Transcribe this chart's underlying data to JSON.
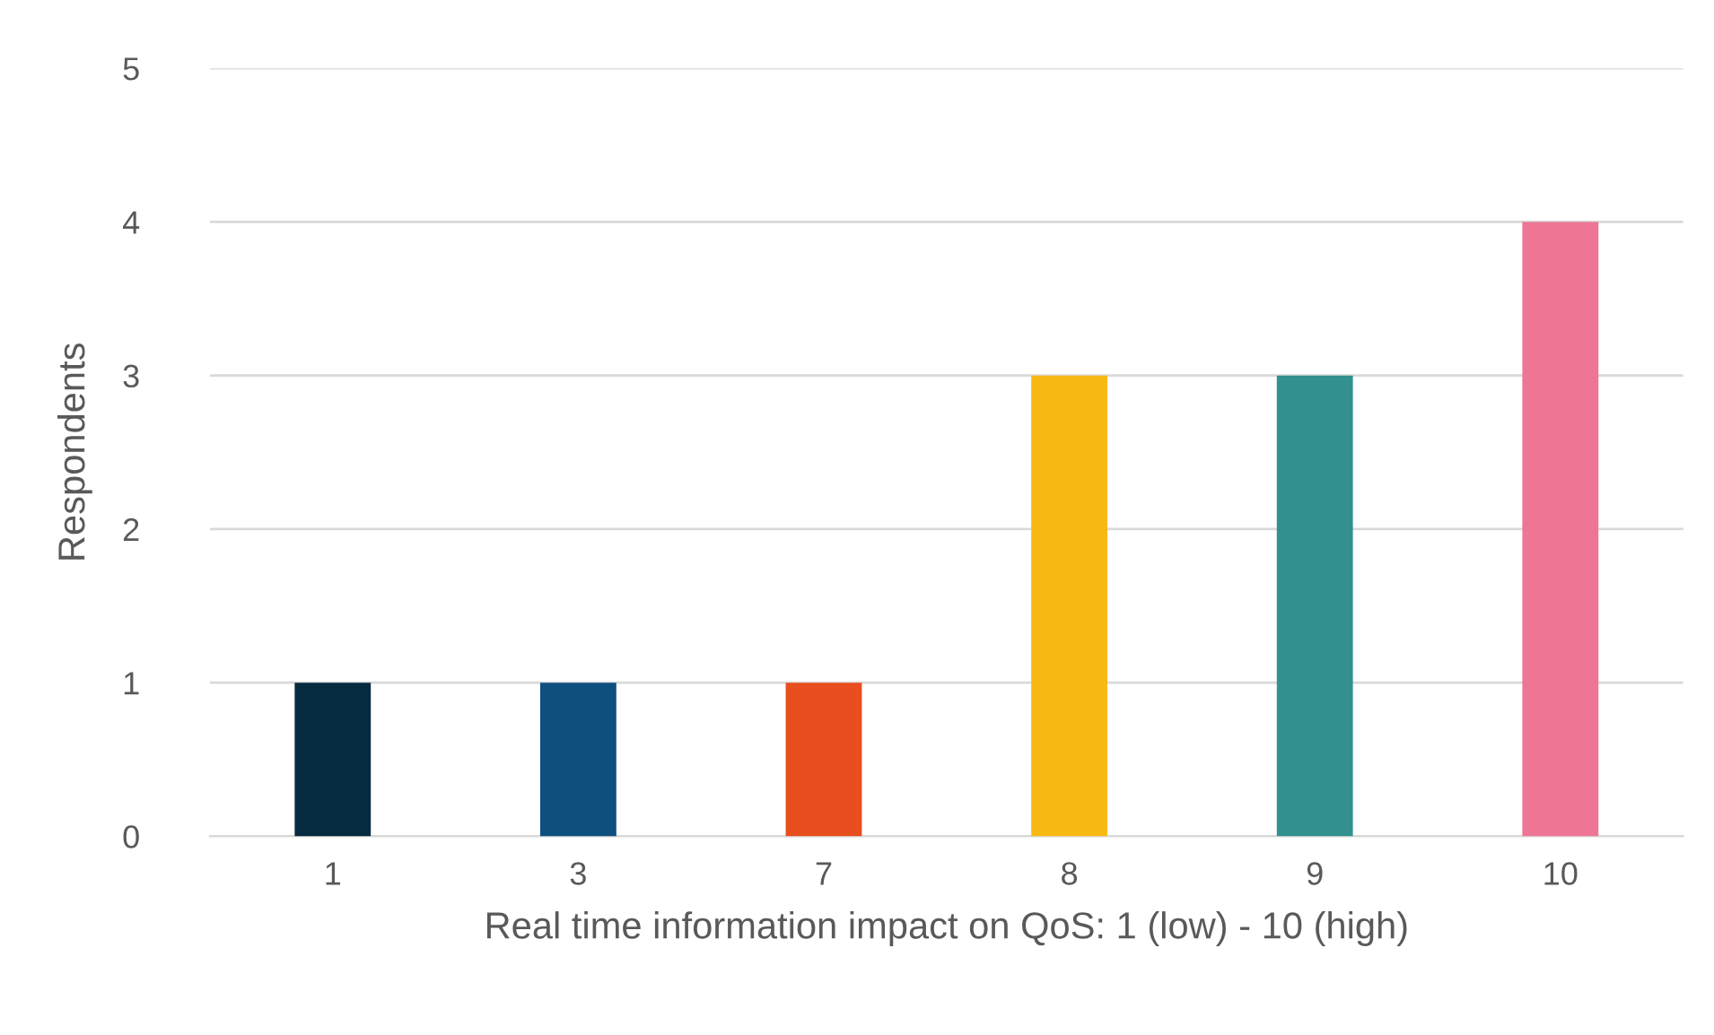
{
  "chart_data": {
    "type": "bar",
    "xlabel": "Real time information impact on QoS: 1 (low) - 10 (high)",
    "ylabel": "Respondents",
    "categories": [
      "1",
      "3",
      "7",
      "8",
      "9",
      "10"
    ],
    "values": [
      1,
      1,
      1,
      3,
      3,
      4
    ],
    "colors": [
      "#062a3f",
      "#0e4f80",
      "#e84e1e",
      "#f9b914",
      "#32918f",
      "#ee7594"
    ],
    "ylim": [
      0,
      5
    ],
    "yticks": [
      0,
      1,
      2,
      3,
      4,
      5
    ],
    "grid": "y",
    "legend": false
  }
}
